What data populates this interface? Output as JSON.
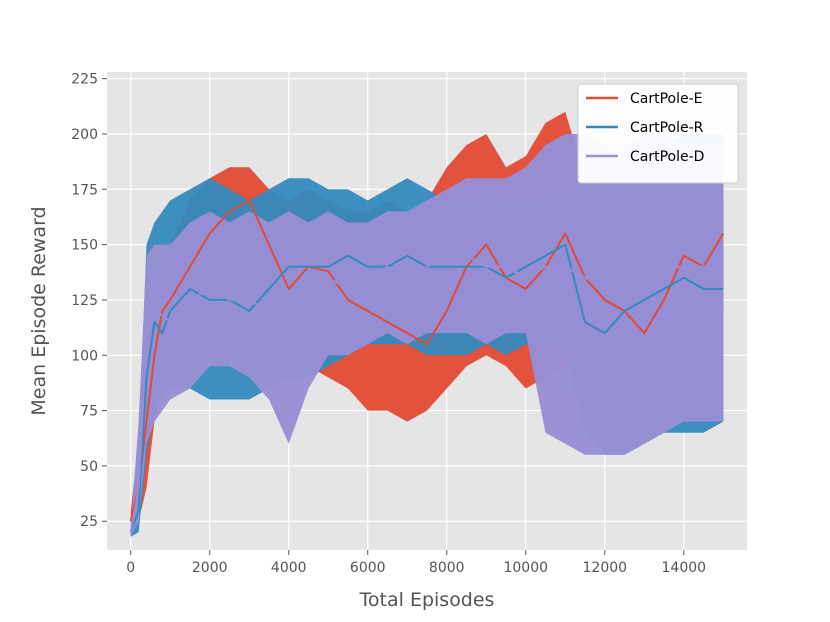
{
  "chart_data": {
    "type": "line",
    "xlabel": "Total Episodes",
    "ylabel": "Mean Episode Reward",
    "xlim": [
      -600,
      15600
    ],
    "ylim": [
      12,
      228
    ],
    "xticks": [
      0,
      2000,
      4000,
      6000,
      8000,
      10000,
      12000,
      14000
    ],
    "yticks": [
      25,
      50,
      75,
      100,
      125,
      150,
      175,
      200,
      225
    ],
    "grid": true,
    "legend_position": "top-right",
    "background": "#e5e5e5",
    "series": [
      {
        "name": "CartPole-E",
        "color": "#e24a33",
        "band_opacity": 0.95,
        "x": [
          0,
          200,
          400,
          600,
          800,
          1000,
          1500,
          2000,
          2500,
          3000,
          3500,
          4000,
          4500,
          5000,
          5500,
          6000,
          6500,
          7000,
          7500,
          8000,
          8500,
          9000,
          9500,
          10000,
          10500,
          11000,
          11500,
          12000,
          12500,
          13000,
          13500,
          14000,
          14500,
          15000
        ],
        "mean": [
          25,
          40,
          70,
          100,
          120,
          125,
          140,
          155,
          165,
          170,
          150,
          130,
          140,
          138,
          125,
          120,
          115,
          110,
          105,
          120,
          140,
          150,
          135,
          130,
          140,
          155,
          135,
          125,
          120,
          110,
          125,
          145,
          140,
          155
        ],
        "upper": [
          30,
          60,
          110,
          130,
          140,
          150,
          170,
          180,
          185,
          185,
          175,
          170,
          175,
          170,
          165,
          165,
          170,
          165,
          170,
          185,
          195,
          200,
          185,
          190,
          205,
          210,
          180,
          165,
          155,
          150,
          155,
          165,
          160,
          170
        ],
        "lower": [
          20,
          25,
          40,
          70,
          90,
          95,
          110,
          120,
          130,
          140,
          110,
          95,
          95,
          90,
          85,
          75,
          75,
          70,
          75,
          85,
          95,
          100,
          95,
          85,
          90,
          95,
          90,
          90,
          85,
          80,
          90,
          110,
          110,
          120
        ]
      },
      {
        "name": "CartPole-R",
        "color": "#348abd",
        "band_opacity": 0.95,
        "x": [
          0,
          200,
          400,
          600,
          800,
          1000,
          1500,
          2000,
          2500,
          3000,
          3500,
          4000,
          4500,
          5000,
          5500,
          6000,
          6500,
          7000,
          7500,
          8000,
          8500,
          9000,
          9500,
          10000,
          10500,
          11000,
          11500,
          12000,
          12500,
          13000,
          13500,
          14000,
          14500,
          15000
        ],
        "mean": [
          20,
          30,
          90,
          115,
          110,
          120,
          130,
          125,
          125,
          120,
          130,
          140,
          140,
          140,
          145,
          140,
          140,
          145,
          140,
          140,
          140,
          140,
          135,
          140,
          145,
          150,
          115,
          110,
          120,
          125,
          130,
          135,
          130,
          130
        ],
        "upper": [
          22,
          60,
          150,
          160,
          165,
          170,
          175,
          180,
          175,
          170,
          175,
          180,
          180,
          175,
          175,
          170,
          175,
          180,
          175,
          170,
          170,
          175,
          170,
          170,
          175,
          175,
          180,
          185,
          190,
          195,
          195,
          200,
          200,
          200
        ],
        "lower": [
          18,
          20,
          55,
          75,
          80,
          85,
          85,
          80,
          80,
          80,
          85,
          90,
          90,
          95,
          100,
          105,
          105,
          105,
          100,
          100,
          100,
          105,
          100,
          105,
          105,
          100,
          65,
          55,
          55,
          60,
          65,
          65,
          65,
          70
        ]
      },
      {
        "name": "CartPole-D",
        "color": "#988ed5",
        "band_opacity": 0.97,
        "x": [
          0,
          200,
          400,
          600,
          800,
          1000,
          1500,
          2000,
          2500,
          3000,
          3500,
          4000,
          4500,
          5000,
          5500,
          6000,
          6500,
          7000,
          7500,
          8000,
          8500,
          9000,
          9500,
          10000,
          10500,
          11000,
          11500,
          12000,
          12500,
          13000,
          13500,
          14000,
          14500,
          15000
        ],
        "mean": [
          20,
          40,
          110,
          120,
          118,
          115,
          125,
          130,
          125,
          125,
          120,
          125,
          130,
          135,
          130,
          135,
          140,
          135,
          140,
          145,
          145,
          140,
          140,
          135,
          140,
          140,
          135,
          130,
          130,
          135,
          140,
          140,
          140,
          145
        ],
        "upper": [
          22,
          70,
          145,
          150,
          150,
          150,
          160,
          165,
          160,
          165,
          160,
          165,
          160,
          165,
          160,
          160,
          165,
          165,
          170,
          175,
          180,
          180,
          180,
          185,
          195,
          200,
          200,
          195,
          195,
          200,
          200,
          195,
          195,
          195
        ],
        "lower": [
          18,
          25,
          60,
          70,
          75,
          80,
          85,
          95,
          95,
          90,
          80,
          60,
          85,
          100,
          100,
          105,
          110,
          105,
          110,
          110,
          110,
          105,
          110,
          110,
          65,
          60,
          55,
          55,
          55,
          60,
          65,
          70,
          70,
          70
        ]
      }
    ]
  }
}
